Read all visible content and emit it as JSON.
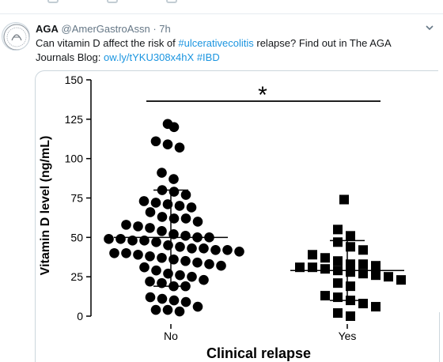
{
  "tweet": {
    "author_name": "AGA",
    "author_handle": "@AmerGastroAssn",
    "separator": "·",
    "time": "7h",
    "text_part1": "Can vitamin D affect the risk of ",
    "hashtag1": "#ulcerativecolitis",
    "text_part2": " relapse? Find out in The AGA Journals Blog: ",
    "link": "ow.ly/tYKU308x4hX",
    "hashtag2": "#IBD"
  },
  "icons": {
    "avatar": "aga-logo-icon",
    "menu": "chevron-down-icon"
  },
  "colors": {
    "link": "#1b95e0",
    "text": "#14171a",
    "muted": "#657786",
    "border": "#ccd6dd"
  },
  "chart_data": {
    "type": "scatter",
    "xlabel": "Clinical relapse",
    "ylabel": "Vitamin D level (ng/mL)",
    "ylim": [
      0,
      150
    ],
    "yticks": [
      0,
      25,
      50,
      75,
      100,
      125,
      150
    ],
    "categories": [
      "No",
      "Yes"
    ],
    "annotation": "*",
    "series": [
      {
        "category": "No",
        "marker": "circle",
        "mean": 50,
        "sd_upper": 80,
        "sd_lower": 19,
        "values": [
          122,
          120,
          111,
          109,
          107,
          91,
          87,
          80,
          79,
          77,
          73,
          72,
          71,
          70,
          69,
          66,
          63,
          62,
          62,
          60,
          58,
          57,
          56,
          54,
          52,
          51,
          50,
          50,
          49,
          49,
          48,
          48,
          47,
          45,
          44,
          43,
          43,
          42,
          42,
          41,
          40,
          40,
          39,
          38,
          37,
          36,
          35,
          34,
          33,
          32,
          31,
          29,
          27,
          26,
          25,
          23,
          22,
          21,
          19,
          19,
          12,
          11,
          10,
          9,
          6,
          4,
          4,
          3
        ]
      },
      {
        "category": "Yes",
        "marker": "square",
        "mean": 29,
        "sd_upper": 48,
        "sd_lower": 10,
        "values": [
          74,
          55,
          51,
          47,
          44,
          42,
          39,
          37,
          35,
          33,
          33,
          32,
          31,
          31,
          30,
          29,
          28,
          27,
          26,
          25,
          23,
          21,
          19,
          13,
          12,
          10,
          8,
          6,
          2,
          0
        ]
      }
    ]
  }
}
